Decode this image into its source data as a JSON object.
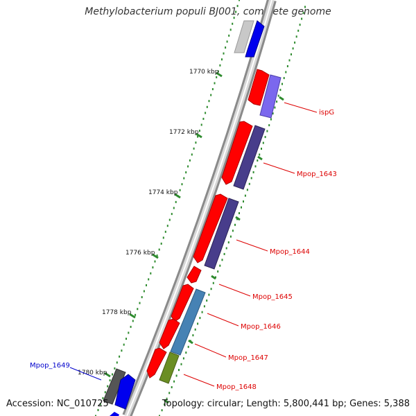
{
  "title": "Methylobacterium populi BJ001, complete genome",
  "accession_text": "Accession: NC_010725",
  "summary_text": "Topology: circular; Length: 5,800,441 bp; Genes: 5,388",
  "colors": {
    "backbone_light": "#c8c8c8",
    "backbone_dark": "#7a7a7a",
    "tick": "#2e8b2e",
    "cds_red": "#ff0000",
    "blue": "#0000ee",
    "light_blue": "#7b68ee",
    "slate": "#483d8b",
    "steel": "#4682b4",
    "olive": "#6b8e23",
    "dark_gray": "#555555",
    "silver": "#c0c0c0",
    "label_red": "#dd0000",
    "label_blue": "#0000cc"
  },
  "scale_labels": [
    "1770 kbp",
    "1772 kbp",
    "1774 kbp",
    "1776 kbp",
    "1778 kbp",
    "1780 kbp"
  ],
  "gene_labels": [
    {
      "name": "ispG",
      "color": "red"
    },
    {
      "name": "Mpop_1643",
      "color": "red"
    },
    {
      "name": "Mpop_1644",
      "color": "red"
    },
    {
      "name": "Mpop_1645",
      "color": "red"
    },
    {
      "name": "Mpop_1646",
      "color": "red"
    },
    {
      "name": "Mpop_1647",
      "color": "red"
    },
    {
      "name": "Mpop_1648",
      "color": "red"
    },
    {
      "name": "Mpop_1649",
      "color": "blue"
    }
  ]
}
